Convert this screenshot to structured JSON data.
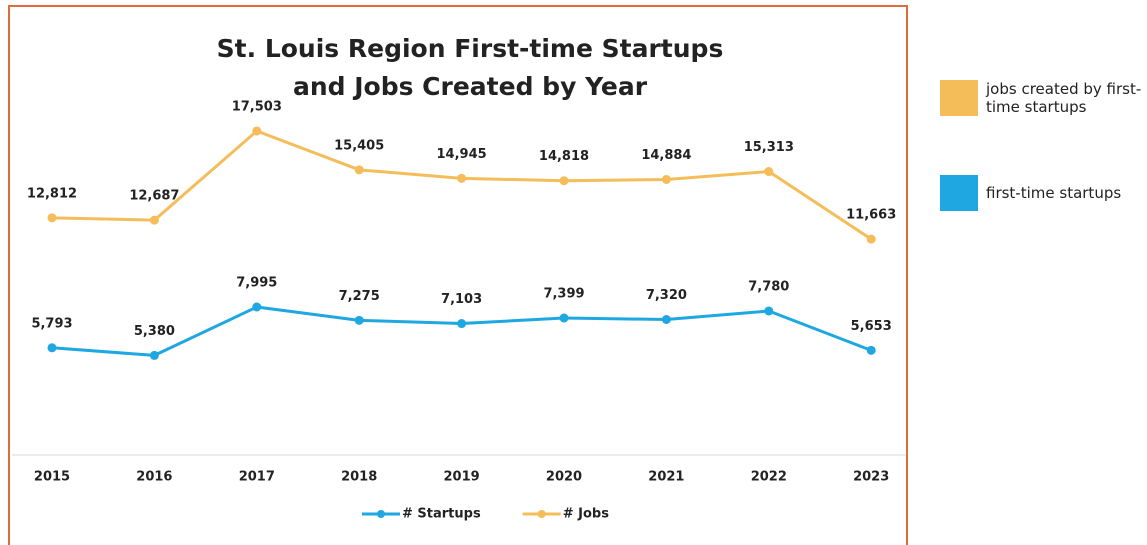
{
  "chart_data": {
    "type": "line",
    "title": "St. Louis Region First-time Startups and Jobs Created by Year",
    "categories": [
      "2015",
      "2016",
      "2017",
      "2018",
      "2019",
      "2020",
      "2021",
      "2022",
      "2023"
    ],
    "series": [
      {
        "name": "# Startups",
        "color": "#1ea7e1",
        "values": [
          5793,
          5380,
          7995,
          7275,
          7103,
          7399,
          7320,
          7780,
          5653
        ],
        "value_labels": [
          "5,793",
          "5,380",
          "7,995",
          "7,275",
          "7,103",
          "7,399",
          "7,320",
          "7,780",
          "5,653"
        ]
      },
      {
        "name": "# Jobs",
        "color": "#f4bd5a",
        "values": [
          12812,
          12687,
          17503,
          15405,
          14945,
          14818,
          14884,
          15313,
          11663
        ],
        "value_labels": [
          "12,812",
          "12,687",
          "17,503",
          "15,405",
          "14,945",
          "14,818",
          "14,884",
          "15,313",
          "11,663"
        ]
      }
    ],
    "side_legend": [
      {
        "label": "jobs created by first-time startups",
        "color": "#f4bd5a"
      },
      {
        "label": "first-time startups",
        "color": "#1ea7e1"
      }
    ]
  }
}
